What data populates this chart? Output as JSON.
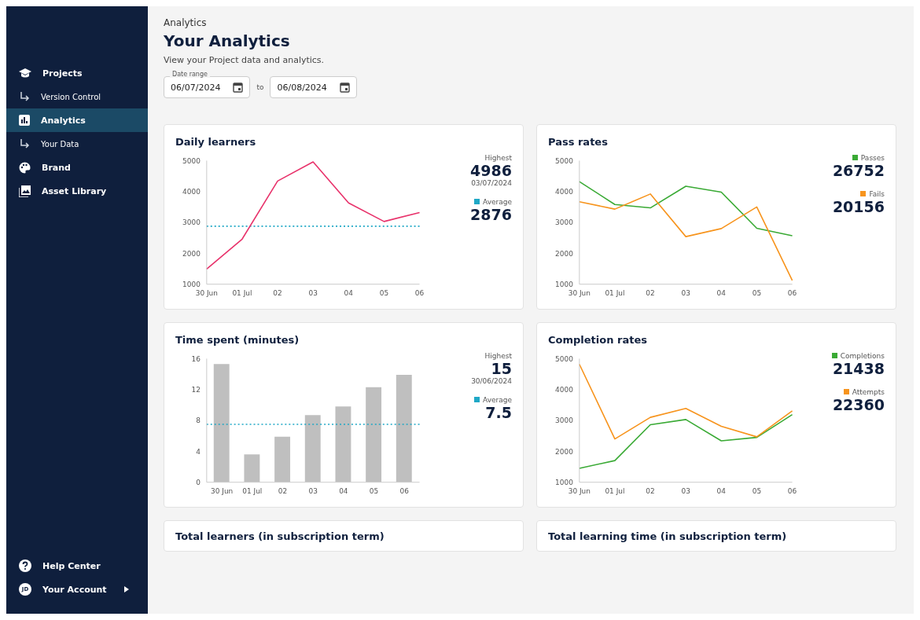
{
  "chart_data": [
    {
      "type": "other",
      "annotations": [
        "Projects",
        "Version Control",
        "Analytics",
        "Your Data",
        "Brand",
        "Asset Library",
        "Help Center",
        "JD",
        "Your Account"
      ]
    },
    {
      "type": "other",
      "title": "Your Analytics",
      "subtitle": "View your Project data and analytics.",
      "annotations": [
        "Analytics",
        "Date range",
        "06/07/2024",
        "to",
        "06/08/2024"
      ]
    },
    {
      "type": "line",
      "title": "Daily learners",
      "categories": [
        "30 Jun",
        "01 Jul",
        "02",
        "03",
        "04",
        "05",
        "06"
      ],
      "values": [
        1490,
        2460,
        4340,
        4960,
        3630,
        3030,
        3320
      ],
      "color": "#e8326b",
      "ylim": [
        1000,
        5000
      ],
      "yticks": [
        1000,
        2000,
        3000,
        4000,
        5000
      ],
      "ref_lines": [
        {
          "axis": "y",
          "value": 2876,
          "label": "Average",
          "color": "#1fa8c6",
          "line_style": "dotted"
        }
      ],
      "annotations": [
        "Highest",
        "4986",
        "03/07/2024",
        "2876"
      ]
    },
    {
      "type": "line",
      "title": "Pass rates",
      "categories": [
        "30 Jun",
        "01 Jul",
        "02",
        "03",
        "04",
        "05",
        "06"
      ],
      "ylim": [
        1000,
        5000
      ],
      "yticks": [
        1000,
        2000,
        3000,
        4000,
        5000
      ],
      "legend": "right",
      "series": [
        {
          "name": "Passes",
          "color": "#3aaa35",
          "values": [
            4320,
            3580,
            3470,
            4170,
            3980,
            2810,
            2570
          ]
        },
        {
          "name": "Fails",
          "color": "#f7941d",
          "values": [
            3670,
            3430,
            3920,
            2540,
            2800,
            3500,
            1120
          ]
        }
      ],
      "annotations": [
        "26752",
        "20156"
      ]
    },
    {
      "type": "bar",
      "title": "Time spent (minutes)",
      "categories": [
        "30 Jun",
        "01 Jul",
        "02",
        "03",
        "04",
        "05",
        "06"
      ],
      "values": [
        15.3,
        3.6,
        5.9,
        8.7,
        9.8,
        12.3,
        13.9
      ],
      "color": "#bfbfbf",
      "ylim": [
        0,
        16
      ],
      "yticks": [
        0,
        4,
        8,
        12,
        16
      ],
      "ref_lines": [
        {
          "axis": "y",
          "value": 7.5,
          "label": "Average",
          "color": "#1fa8c6",
          "line_style": "dotted"
        }
      ],
      "annotations": [
        "Highest",
        "15",
        "30/06/2024",
        "7.5"
      ]
    },
    {
      "type": "line",
      "title": "Completion rates",
      "categories": [
        "30 Jun",
        "01 Jul",
        "02",
        "03",
        "04",
        "05",
        "06"
      ],
      "ylim": [
        1000,
        5000
      ],
      "yticks": [
        1000,
        2000,
        3000,
        4000,
        5000
      ],
      "legend": "right",
      "series": [
        {
          "name": "Completions",
          "color": "#3aaa35",
          "values": [
            1450,
            1700,
            2860,
            3030,
            2340,
            2450,
            3190
          ]
        },
        {
          "name": "Attempts",
          "color": "#f7941d",
          "values": [
            4820,
            2400,
            3100,
            3390,
            2810,
            2470,
            3310
          ]
        }
      ],
      "annotations": [
        "21438",
        "22360"
      ]
    },
    {
      "type": "other",
      "title": "Total learners (in subscription term)"
    },
    {
      "type": "other",
      "title": "Total learning time (in subscription term)"
    }
  ]
}
